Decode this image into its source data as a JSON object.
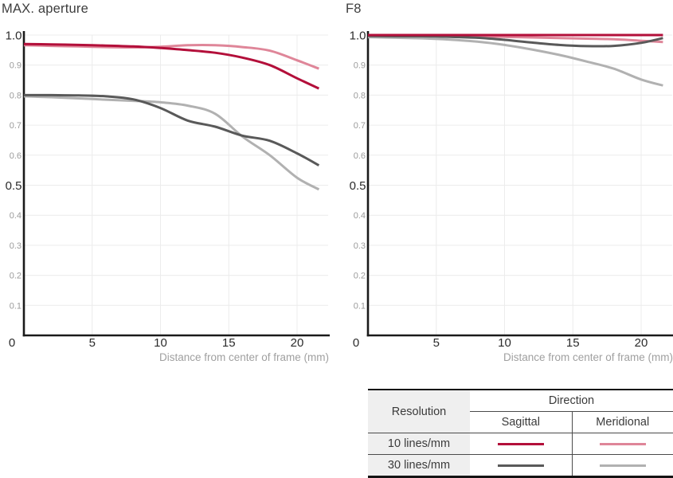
{
  "page": {
    "background": "#ffffff"
  },
  "colors": {
    "sagittal_10": "#b30f3a",
    "meridional_10": "#df8699",
    "sagittal_30": "#595959",
    "meridional_30": "#b1b1b1",
    "axis": "#1a1a1a",
    "grid": "#ececec",
    "title_text": "#3d3d3d",
    "tick_major": "#2b2b2b",
    "tick_minor": "#9b9b9b",
    "axis_label": "#a0a0a0",
    "table_text": "#3b3b3b",
    "table_header_bg": "#efefef",
    "table_border_heavy": "#141414",
    "table_border_light": "#4a4a4a"
  },
  "chart_data": [
    {
      "type": "line",
      "id": "max-aperture",
      "title": "MAX. aperture",
      "xlabel": "Distance from center of frame (mm)",
      "ylabel": "",
      "xlim": [
        0,
        21.6
      ],
      "ylim": [
        0,
        1.0
      ],
      "grid": true,
      "legend_position": "table-below-right",
      "x_ticks": [
        0,
        5,
        10,
        15,
        20
      ],
      "y_ticks_major": [
        0.5,
        1.0
      ],
      "y_ticks_minor": [
        0.1,
        0.2,
        0.3,
        0.4,
        0.6,
        0.7,
        0.8,
        0.9
      ],
      "x": [
        0,
        2,
        4,
        6,
        8,
        10,
        12,
        14,
        16,
        18,
        20,
        21.6
      ],
      "series": [
        {
          "name": "10 lines/mm Meridional",
          "color": "meridional_10",
          "values": [
            0.966,
            0.964,
            0.962,
            0.96,
            0.959,
            0.961,
            0.966,
            0.966,
            0.96,
            0.948,
            0.916,
            0.888
          ]
        },
        {
          "name": "30 lines/mm Meridional",
          "color": "meridional_30",
          "values": [
            0.796,
            0.793,
            0.789,
            0.785,
            0.781,
            0.776,
            0.765,
            0.738,
            0.662,
            0.6,
            0.525,
            0.486
          ]
        },
        {
          "name": "30 lines/mm Sagittal",
          "color": "sagittal_30",
          "values": [
            0.8,
            0.8,
            0.799,
            0.796,
            0.786,
            0.757,
            0.715,
            0.695,
            0.665,
            0.648,
            0.606,
            0.566
          ]
        },
        {
          "name": "10 lines/mm Sagittal",
          "color": "sagittal_10",
          "values": [
            0.97,
            0.969,
            0.967,
            0.965,
            0.962,
            0.957,
            0.95,
            0.941,
            0.925,
            0.9,
            0.856,
            0.822
          ]
        }
      ]
    },
    {
      "type": "line",
      "id": "f8",
      "title": "F8",
      "xlabel": "Distance from center of frame (mm)",
      "ylabel": "",
      "xlim": [
        0,
        21.6
      ],
      "ylim": [
        0,
        1.0
      ],
      "grid": true,
      "legend_position": "table-below-right",
      "x_ticks": [
        0,
        5,
        10,
        15,
        20
      ],
      "y_ticks_major": [
        0.5,
        1.0
      ],
      "y_ticks_minor": [
        0.1,
        0.2,
        0.3,
        0.4,
        0.6,
        0.7,
        0.8,
        0.9
      ],
      "x": [
        0,
        2,
        4,
        6,
        8,
        10,
        12,
        14,
        16,
        18,
        20,
        21.6
      ],
      "series": [
        {
          "name": "10 lines/mm Meridional",
          "color": "meridional_10",
          "values": [
            0.997,
            0.997,
            0.996,
            0.996,
            0.995,
            0.994,
            0.992,
            0.99,
            0.988,
            0.986,
            0.981,
            0.977
          ]
        },
        {
          "name": "30 lines/mm Meridional",
          "color": "meridional_30",
          "values": [
            0.993,
            0.991,
            0.989,
            0.985,
            0.978,
            0.967,
            0.952,
            0.934,
            0.912,
            0.888,
            0.852,
            0.832
          ]
        },
        {
          "name": "30 lines/mm Sagittal",
          "color": "sagittal_30",
          "values": [
            0.997,
            0.996,
            0.996,
            0.994,
            0.991,
            0.984,
            0.975,
            0.967,
            0.963,
            0.964,
            0.974,
            0.99
          ]
        },
        {
          "name": "10 lines/mm Sagittal",
          "color": "sagittal_10",
          "values": [
            1.0,
            1.0,
            1.0,
            1.0,
            1.0,
            1.0,
            1.0,
            1.0,
            1.0,
            1.0,
            1.0,
            1.0
          ]
        }
      ]
    }
  ],
  "legend_table": {
    "headers": {
      "resolution": "Resolution",
      "direction": "Direction",
      "sagittal": "Sagittal",
      "meridional": "Meridional"
    },
    "rows": [
      {
        "label": "10 lines/mm"
      },
      {
        "label": "30 lines/mm"
      }
    ]
  }
}
